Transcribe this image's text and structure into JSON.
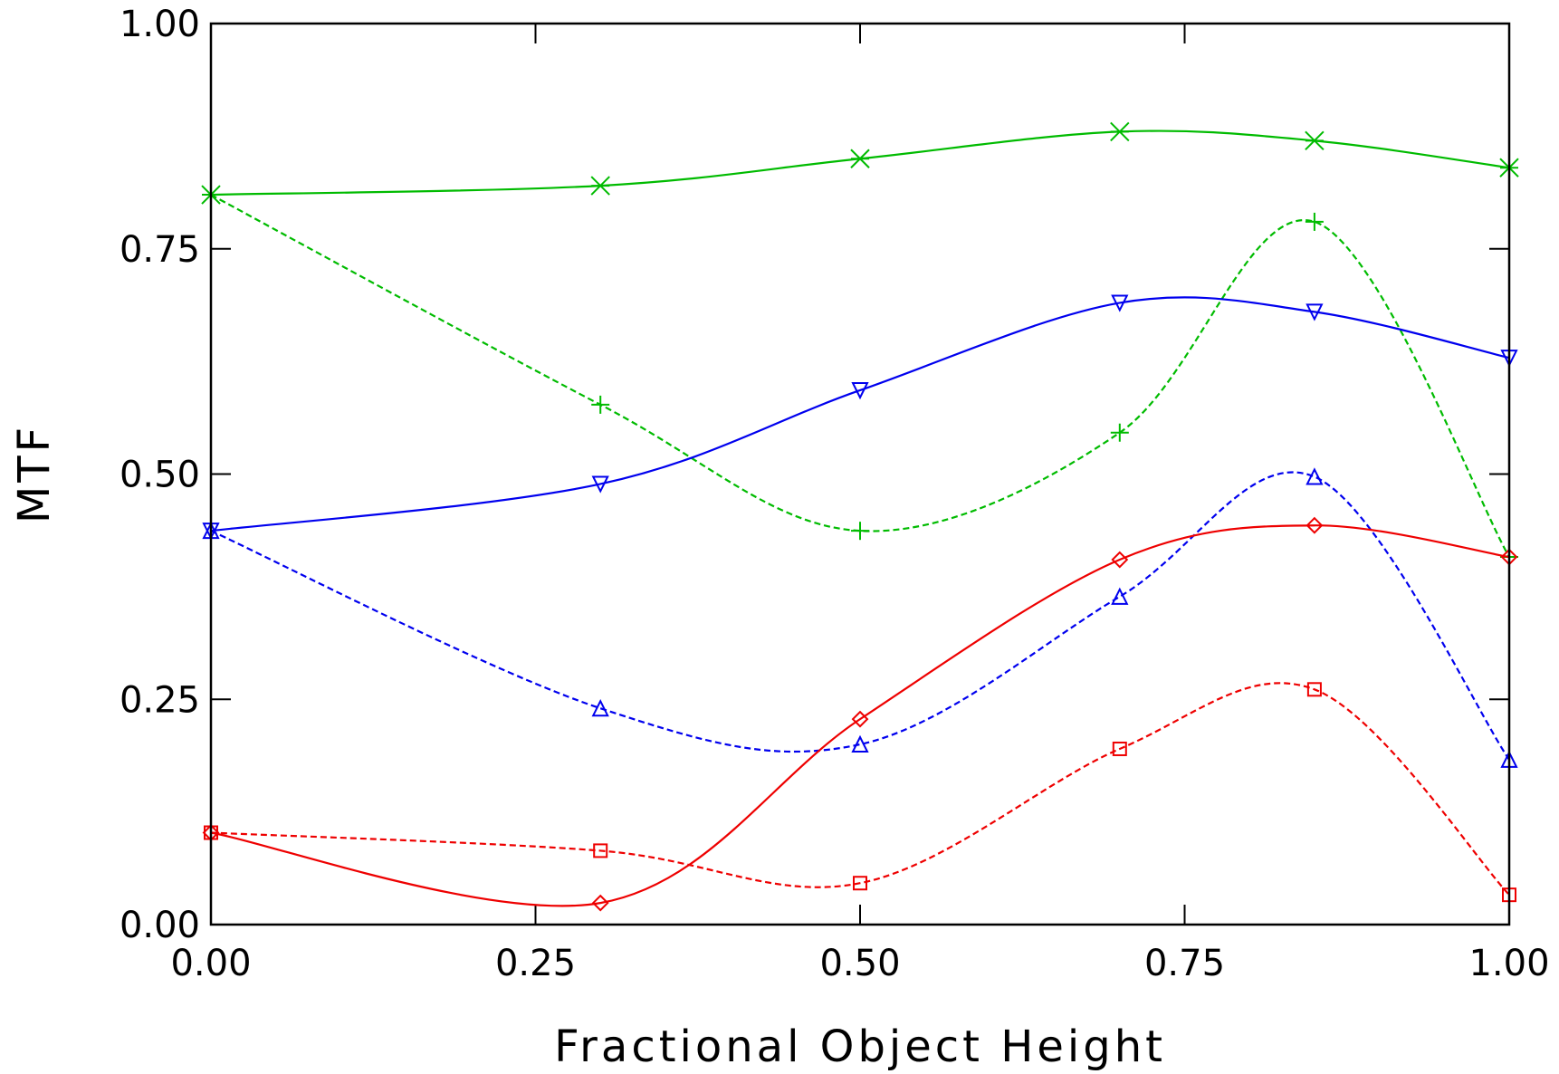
{
  "chart_data": {
    "type": "line",
    "title": "",
    "xlabel": "Fractional Object Height",
    "ylabel": "MTF",
    "xlim": [
      0,
      1
    ],
    "ylim": [
      0,
      1
    ],
    "grid": false,
    "legend": "none",
    "x_ticks": [
      "0.00",
      "0.25",
      "0.50",
      "0.75",
      "1.00"
    ],
    "y_ticks": [
      "0.00",
      "0.25",
      "0.50",
      "0.75",
      "1.00"
    ],
    "x": [
      0.0,
      0.3,
      0.5,
      0.7,
      0.85,
      1.0
    ],
    "series": [
      {
        "color": "#00bb00",
        "style": "solid",
        "marker": "x-star",
        "values": [
          0.81,
          0.82,
          0.85,
          0.88,
          0.87,
          0.84
        ]
      },
      {
        "color": "#00bb00",
        "style": "dashed",
        "marker": "plus",
        "values": [
          0.81,
          0.577,
          0.437,
          0.546,
          0.78,
          0.408
        ]
      },
      {
        "color": "#0000ee",
        "style": "solid",
        "marker": "triangle-down",
        "values": [
          0.437,
          0.489,
          0.593,
          0.69,
          0.68,
          0.629
        ]
      },
      {
        "color": "#0000ee",
        "style": "dashed",
        "marker": "triangle-up",
        "values": [
          0.437,
          0.24,
          0.2,
          0.364,
          0.497,
          0.183
        ]
      },
      {
        "color": "#ee0000",
        "style": "solid",
        "marker": "diamond",
        "values": [
          0.102,
          0.024,
          0.228,
          0.405,
          0.443,
          0.408
        ]
      },
      {
        "color": "#ee0000",
        "style": "dashed",
        "marker": "square",
        "values": [
          0.102,
          0.082,
          0.046,
          0.195,
          0.261,
          0.033
        ]
      }
    ]
  }
}
